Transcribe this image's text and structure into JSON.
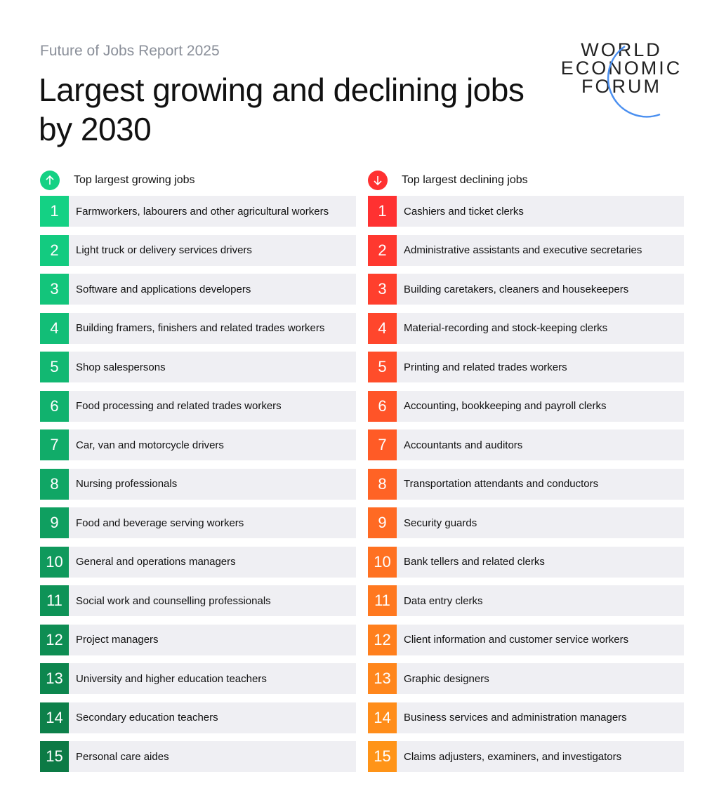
{
  "header": {
    "subtitle": "Future of Jobs Report 2025",
    "title": "Largest growing and declining jobs by 2030"
  },
  "logo": {
    "text": "WORLD ECONOMIC FORUM",
    "lines": [
      "WORLD",
      "ECONOMIC",
      "FORUM"
    ],
    "arc_color": "#4a8ff0"
  },
  "growing": {
    "label": "Top largest growing jobs",
    "icon": "arrow-up-icon",
    "color_start": "#14d184",
    "color_end": "#0c7a45",
    "items": [
      {
        "rank": "1",
        "job": "Farmworkers, labourers and other agricultural workers"
      },
      {
        "rank": "2",
        "job": "Light truck or delivery services drivers"
      },
      {
        "rank": "3",
        "job": "Software and applications developers"
      },
      {
        "rank": "4",
        "job": "Building framers, finishers and related trades workers"
      },
      {
        "rank": "5",
        "job": "Shop salespersons"
      },
      {
        "rank": "6",
        "job": "Food processing and related trades workers"
      },
      {
        "rank": "7",
        "job": "Car, van and motorcycle drivers"
      },
      {
        "rank": "8",
        "job": "Nursing professionals"
      },
      {
        "rank": "9",
        "job": "Food and beverage serving workers"
      },
      {
        "rank": "10",
        "job": "General and operations managers"
      },
      {
        "rank": "11",
        "job": "Social work and counselling professionals"
      },
      {
        "rank": "12",
        "job": "Project managers"
      },
      {
        "rank": "13",
        "job": "University and higher education teachers"
      },
      {
        "rank": "14",
        "job": "Secondary education teachers"
      },
      {
        "rank": "15",
        "job": "Personal care aides"
      }
    ]
  },
  "declining": {
    "label": "Top largest declining jobs",
    "icon": "arrow-down-icon",
    "color_start": "#ff3131",
    "color_end": "#ff9418",
    "items": [
      {
        "rank": "1",
        "job": "Cashiers and ticket clerks"
      },
      {
        "rank": "2",
        "job": "Administrative assistants and executive secretaries"
      },
      {
        "rank": "3",
        "job": "Building caretakers, cleaners and housekeepers"
      },
      {
        "rank": "4",
        "job": "Material-recording and stock-keeping clerks"
      },
      {
        "rank": "5",
        "job": "Printing and related trades workers"
      },
      {
        "rank": "6",
        "job": "Accounting, bookkeeping and payroll clerks"
      },
      {
        "rank": "7",
        "job": "Accountants and auditors"
      },
      {
        "rank": "8",
        "job": "Transportation attendants and conductors"
      },
      {
        "rank": "9",
        "job": "Security guards"
      },
      {
        "rank": "10",
        "job": "Bank tellers and related clerks"
      },
      {
        "rank": "11",
        "job": "Data entry clerks"
      },
      {
        "rank": "12",
        "job": "Client information and customer service workers"
      },
      {
        "rank": "13",
        "job": "Graphic designers"
      },
      {
        "rank": "14",
        "job": "Business services and administration managers"
      },
      {
        "rank": "15",
        "job": "Claims adjusters, examiners, and investigators"
      }
    ]
  }
}
